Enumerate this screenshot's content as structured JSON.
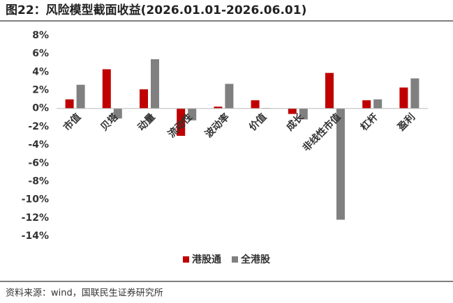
{
  "chart_data": {
    "type": "bar",
    "title": "图22：风险模型截面收益(2026.01.01-2026.06.01)",
    "source": "资料来源：wind，国联民生证券研究所",
    "categories": [
      "市值",
      "贝塔",
      "动量",
      "流动性",
      "波动率",
      "价值",
      "成长",
      "非线性市值",
      "杠杆",
      "盈利"
    ],
    "series": [
      {
        "name": "港股通",
        "color": "#c00000",
        "values": [
          1.0,
          4.3,
          2.1,
          -3.0,
          0.2,
          0.9,
          -0.6,
          3.9,
          0.9,
          2.3
        ]
      },
      {
        "name": "全港股",
        "color": "#808080",
        "values": [
          2.6,
          -1.1,
          5.4,
          -1.3,
          2.7,
          0.05,
          -1.2,
          -12.2,
          1.0,
          3.3
        ]
      }
    ],
    "ylim": [
      -14,
      8
    ],
    "yticks": [
      {
        "value": 8,
        "label": "8%"
      },
      {
        "value": 6,
        "label": "6%"
      },
      {
        "value": 4,
        "label": "4%"
      },
      {
        "value": 2,
        "label": "2%"
      },
      {
        "value": 0,
        "label": "0%"
      },
      {
        "value": -2,
        "label": "-2%"
      },
      {
        "value": -4,
        "label": "-4%"
      },
      {
        "value": -6,
        "label": "-6%"
      },
      {
        "value": -8,
        "label": "-8%"
      },
      {
        "value": -10,
        "label": "-10%"
      },
      {
        "value": -12,
        "label": "-12%"
      },
      {
        "value": -14,
        "label": "-14%"
      }
    ],
    "grid": false,
    "legend": "bottom"
  }
}
